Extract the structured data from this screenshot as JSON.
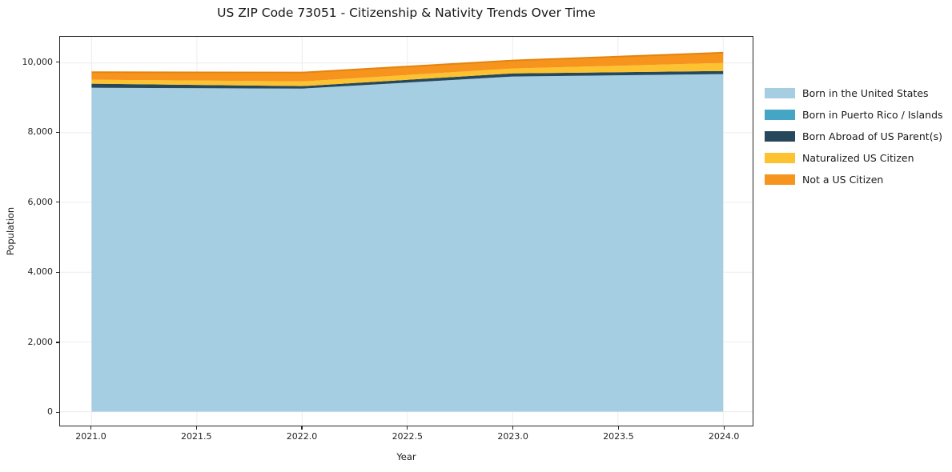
{
  "chart_data": {
    "type": "area",
    "stacked": true,
    "title": "US ZIP Code 73051 - Citizenship & Nativity Trends Over Time",
    "xlabel": "Year",
    "ylabel": "Population",
    "x": [
      2021,
      2022,
      2023,
      2024
    ],
    "series": [
      {
        "name": "Born in the United States",
        "color": "#a5cee3",
        "values": [
          9290,
          9265,
          9610,
          9680
        ]
      },
      {
        "name": "Born in Puerto Rico / Islands",
        "color": "#45a5c4",
        "values": [
          0,
          0,
          0,
          0
        ]
      },
      {
        "name": "Born Abroad of US Parent(s)",
        "color": "#26485a",
        "values": [
          115,
          70,
          90,
          90
        ]
      },
      {
        "name": "Naturalized US Citizen",
        "color": "#fcc230",
        "values": [
          115,
          135,
          140,
          230
        ]
      },
      {
        "name": "Not a US Citizen",
        "color": "#f7941e",
        "values": [
          215,
          255,
          230,
          295
        ]
      }
    ],
    "stack_totals": [
      9735,
      9725,
      10070,
      10295
    ],
    "xlim": [
      2020.85,
      2024.14
    ],
    "ylim": [
      -400,
      10750
    ],
    "xticks": [
      2021.0,
      2021.5,
      2022.0,
      2022.5,
      2023.0,
      2023.5,
      2024.0
    ],
    "xtick_labels": [
      "2021.0",
      "2021.5",
      "2022.0",
      "2022.5",
      "2023.0",
      "2023.5",
      "2024.0"
    ],
    "yticks": [
      0,
      2000,
      4000,
      6000,
      8000,
      10000
    ],
    "ytick_labels": [
      "0",
      "2,000",
      "4,000",
      "6,000",
      "8,000",
      "10,000"
    ],
    "grid": true,
    "gridline_color": "#ececec",
    "spine_color": "#262626",
    "top_edge_color": "#e5830d",
    "legend_position": "right-outside"
  }
}
